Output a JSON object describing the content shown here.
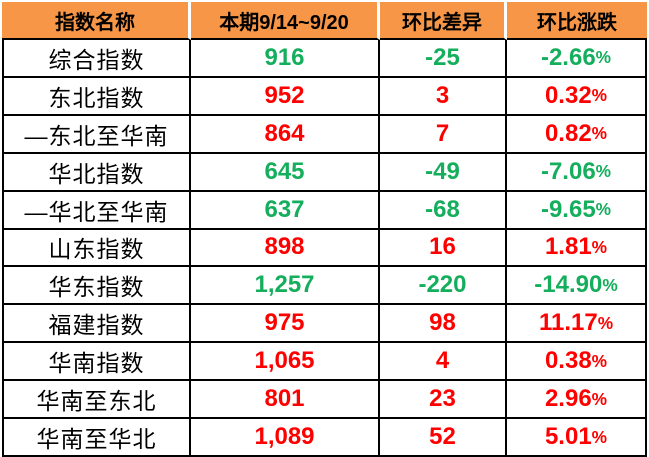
{
  "table": {
    "headers": [
      "指数名称",
      "本期9/14~9/20",
      "环比差异",
      "环比涨跌"
    ],
    "rows": [
      {
        "name": "综合指数",
        "current": "916",
        "diff": "-25",
        "pct": "-2.66%",
        "trend": "down"
      },
      {
        "name": "东北指数",
        "current": "952",
        "diff": "3",
        "pct": "0.32%",
        "trend": "up"
      },
      {
        "name": "—东北至华南",
        "current": "864",
        "diff": "7",
        "pct": "0.82%",
        "trend": "up"
      },
      {
        "name": "华北指数",
        "current": "645",
        "diff": "-49",
        "pct": "-7.06%",
        "trend": "down"
      },
      {
        "name": "—华北至华南",
        "current": "637",
        "diff": "-68",
        "pct": "-9.65%",
        "trend": "down"
      },
      {
        "name": "山东指数",
        "current": "898",
        "diff": "16",
        "pct": "1.81%",
        "trend": "up"
      },
      {
        "name": "华东指数",
        "current": "1,257",
        "diff": "-220",
        "pct": "-14.90%",
        "trend": "down"
      },
      {
        "name": "福建指数",
        "current": "975",
        "diff": "98",
        "pct": "11.17%",
        "trend": "up"
      },
      {
        "name": "华南指数",
        "current": "1,065",
        "diff": "4",
        "pct": "0.38%",
        "trend": "up"
      },
      {
        "name": "华南至东北",
        "current": "801",
        "diff": "23",
        "pct": "2.96%",
        "trend": "up"
      },
      {
        "name": "华南至华北",
        "current": "1,089",
        "diff": "52",
        "pct": "5.01%",
        "trend": "up"
      }
    ]
  },
  "colors": {
    "header_bg": "#F79646",
    "up": "#FF0000",
    "down": "#14AE5C",
    "grid": "#000000"
  },
  "chart_data": {
    "type": "table",
    "title": "",
    "columns": [
      "指数名称",
      "本期9/14~9/20",
      "环比差异",
      "环比涨跌"
    ],
    "rows": [
      [
        "综合指数",
        916,
        -25,
        "-2.66%"
      ],
      [
        "东北指数",
        952,
        3,
        "0.32%"
      ],
      [
        "—东北至华南",
        864,
        7,
        "0.82%"
      ],
      [
        "华北指数",
        645,
        -49,
        "-7.06%"
      ],
      [
        "—华北至华南",
        637,
        -68,
        "-9.65%"
      ],
      [
        "山东指数",
        898,
        16,
        "1.81%"
      ],
      [
        "华东指数",
        1257,
        -220,
        "-14.90%"
      ],
      [
        "福建指数",
        975,
        98,
        "11.17%"
      ],
      [
        "华南指数",
        1065,
        4,
        "0.38%"
      ],
      [
        "华南至东北",
        801,
        23,
        "2.96%"
      ],
      [
        "华南至华北",
        1089,
        52,
        "5.01%"
      ]
    ],
    "notes": "green = decline vs prior period, red = rise"
  }
}
